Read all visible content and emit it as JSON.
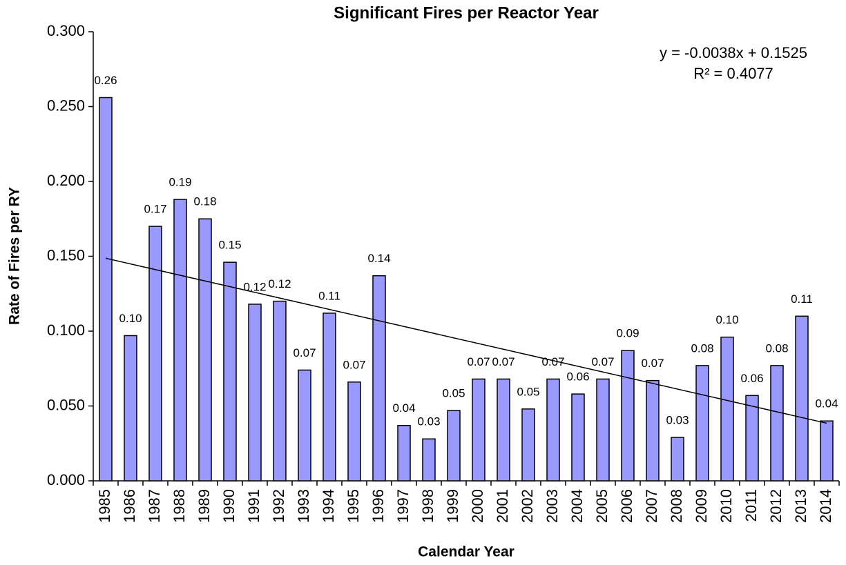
{
  "chart_data": {
    "type": "bar",
    "title": "Significant Fires per Reactor Year",
    "x_label": "Calendar Year",
    "y_label": "Rate of Fires per RY",
    "categories": [
      "1985",
      "1986",
      "1987",
      "1988",
      "1989",
      "1990",
      "1991",
      "1992",
      "1993",
      "1994",
      "1995",
      "1996",
      "1997",
      "1998",
      "1999",
      "2000",
      "2001",
      "2002",
      "2003",
      "2004",
      "2005",
      "2006",
      "2007",
      "2008",
      "2009",
      "2010",
      "2011",
      "2012",
      "2013",
      "2014"
    ],
    "values": [
      0.256,
      0.097,
      0.17,
      0.188,
      0.175,
      0.146,
      0.118,
      0.12,
      0.074,
      0.112,
      0.066,
      0.137,
      0.037,
      0.028,
      0.047,
      0.068,
      0.068,
      0.048,
      0.068,
      0.058,
      0.068,
      0.087,
      0.067,
      0.029,
      0.077,
      0.096,
      0.057,
      0.077,
      0.11,
      0.04
    ],
    "value_labels": [
      "0.26",
      "0.10",
      "0.17",
      "0.19",
      "0.18",
      "0.15",
      "0.12",
      "0.12",
      "0.07",
      "0.11",
      "0.07",
      "0.14",
      "0.04",
      "0.03",
      "0.05",
      "0.07",
      "0.07",
      "0.05",
      "0.07",
      "0.06",
      "0.07",
      "0.09",
      "0.07",
      "0.03",
      "0.08",
      "0.10",
      "0.06",
      "0.08",
      "0.11",
      "0.04"
    ],
    "color": "#9999ff",
    "trendline": {
      "slope": -0.0038,
      "intercept": 0.1525
    },
    "annotations": [
      "y = -0.0038x + 0.1525",
      "R² = 0.4077"
    ],
    "ylim": [
      0,
      0.3
    ],
    "yticks": [
      {
        "value": 0,
        "label": "0.000"
      },
      {
        "value": 0.05,
        "label": "0.050"
      },
      {
        "value": 0.1,
        "label": "0.100"
      },
      {
        "value": 0.15,
        "label": "0.150"
      },
      {
        "value": 0.2,
        "label": "0.200"
      },
      {
        "value": 0.25,
        "label": "0.250"
      },
      {
        "value": 0.3,
        "label": "0.300"
      }
    ],
    "grid": false
  }
}
